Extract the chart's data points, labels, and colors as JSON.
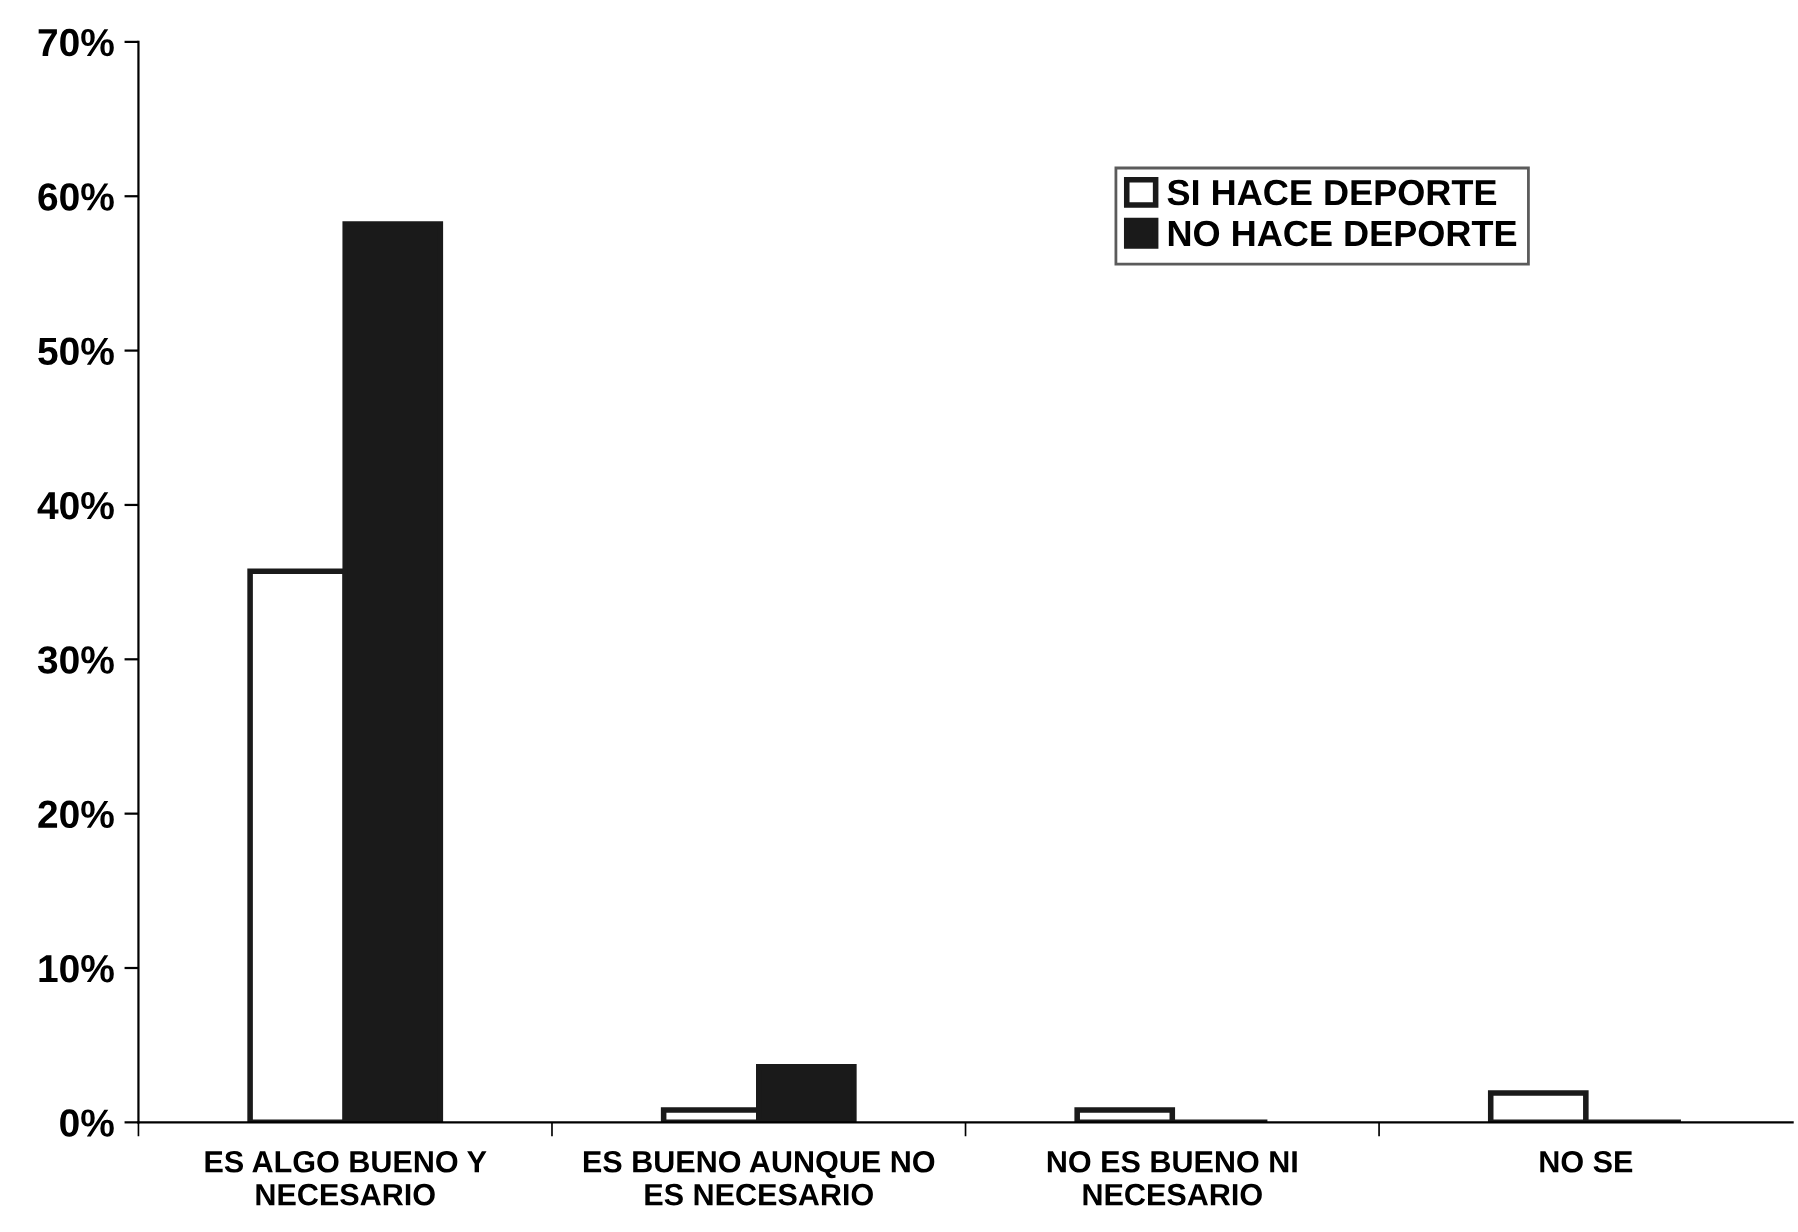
{
  "chart_data": {
    "type": "bar",
    "categories": [
      "ES ALGO BUENO Y\nNECESARIO",
      "ES BUENO AUNQUE NO\nES NECESARIO",
      "NO ES BUENO NI\nNECESARIO",
      "NO SE"
    ],
    "series": [
      {
        "name": "SI HACE DEPORTE",
        "color": "#ffffff",
        "values": [
          35.7,
          0.8,
          0.8,
          1.9
        ]
      },
      {
        "name": "NO HACE DEPORTE",
        "color": "#1a1a1a",
        "values": [
          58.2,
          3.6,
          0,
          0
        ]
      }
    ],
    "ylim": [
      0,
      70
    ],
    "yticks": [
      {
        "value": 0,
        "label": "0%"
      },
      {
        "value": 10,
        "label": "10%"
      },
      {
        "value": 20,
        "label": "20%"
      },
      {
        "value": 30,
        "label": "30%"
      },
      {
        "value": 40,
        "label": "40%"
      },
      {
        "value": 50,
        "label": "50%"
      },
      {
        "value": 60,
        "label": "60%"
      },
      {
        "value": 70,
        "label": "70%"
      }
    ],
    "grid": false,
    "legend": "top right"
  }
}
